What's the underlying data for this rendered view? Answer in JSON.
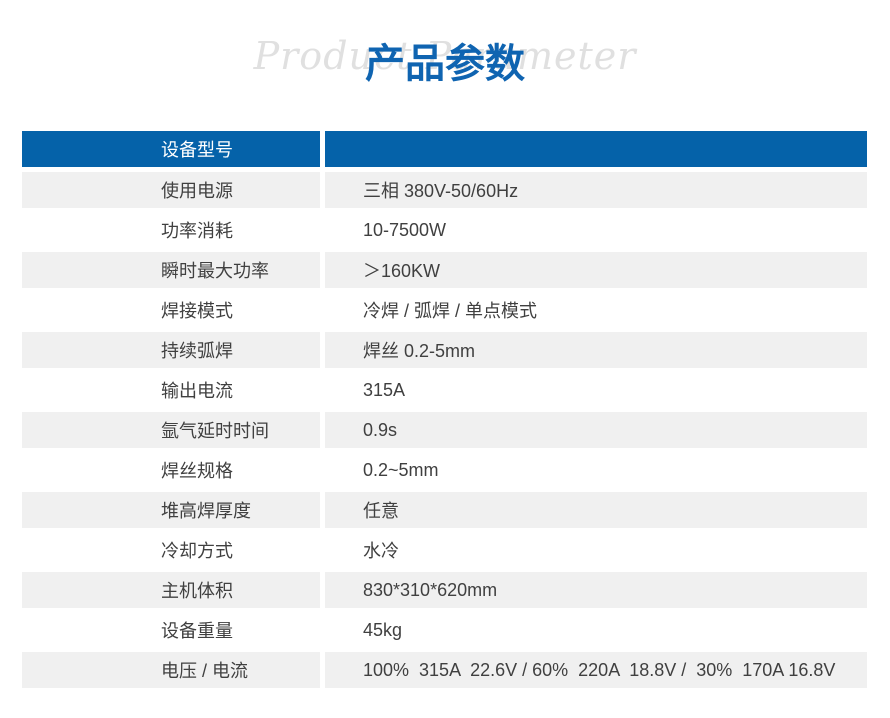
{
  "header": {
    "title": "产品参数",
    "watermark": "Product Parameter"
  },
  "table": {
    "header_label": "设备型号",
    "header_value": "",
    "rows": [
      {
        "label": "使用电源",
        "value": "三相 380V-50/60Hz"
      },
      {
        "label": "功率消耗",
        "value": "10-7500W"
      },
      {
        "label": "瞬时最大功率",
        "value": "＞160KW"
      },
      {
        "label": "焊接模式",
        "value": "冷焊 / 弧焊 / 单点模式"
      },
      {
        "label": "持续弧焊",
        "value": "焊丝 0.2-5mm"
      },
      {
        "label": "输出电流",
        "value": "315A"
      },
      {
        "label": "氩气延时时间",
        "value": "0.9s"
      },
      {
        "label": "焊丝规格",
        "value": "0.2~5mm"
      },
      {
        "label": "堆高焊厚度",
        "value": "任意"
      },
      {
        "label": "冷却方式",
        "value": "水冷"
      },
      {
        "label": "主机体积",
        "value": "830*310*620mm"
      },
      {
        "label": "设备重量",
        "value": "45kg"
      },
      {
        "label": "电压 / 电流",
        "value": "100%  315A  22.6V / 60%  220A  18.8V /  30%  170A 16.8V"
      }
    ]
  },
  "colors": {
    "header_bg": "#0562a9",
    "title_blue": "#0f64b1",
    "row_alt_bg": "#f0f0f0",
    "text": "#404040",
    "watermark": "#e0e0e0"
  }
}
